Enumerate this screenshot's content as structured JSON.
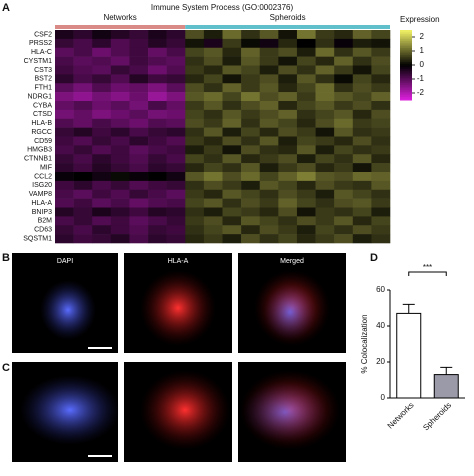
{
  "chart_data": [
    {
      "type": "heatmap",
      "title": "Immune System Process (GO:0002376)",
      "rows": [
        "CSF2",
        "PRSS2",
        "HLA-C",
        "CYSTM1",
        "CST3",
        "BST2",
        "FTH1",
        "NDRG1",
        "CYBA",
        "CTSD",
        "HLA-B",
        "RGCC",
        "CD59",
        "HMGB3",
        "CTNNB1",
        "MIF",
        "CCL2",
        "ISG20",
        "VAMP8",
        "HLA-A",
        "BNIP3",
        "B2M",
        "CD63",
        "SQSTM1"
      ],
      "groups": [
        {
          "name": "Networks",
          "color": "#d98a86"
        },
        {
          "name": "Spheroids",
          "color": "#5fbfca"
        }
      ],
      "column_groups": [
        "Networks",
        "Networks",
        "Networks",
        "Networks",
        "Networks",
        "Networks",
        "Networks",
        "Spheroids",
        "Spheroids",
        "Spheroids",
        "Spheroids",
        "Spheroids",
        "Spheroids",
        "Spheroids",
        "Spheroids",
        "Spheroids",
        "Spheroids",
        "Spheroids"
      ],
      "values": [
        [
          -0.3,
          -0.5,
          -0.2,
          -0.4,
          -0.6,
          -0.3,
          -0.5,
          0.8,
          0.3,
          1.1,
          0.5,
          0.9,
          0.2,
          1.2,
          0.6,
          0.4,
          1.0,
          0.7
        ],
        [
          -0.6,
          -0.8,
          -0.5,
          -0.9,
          -0.7,
          -0.4,
          -0.6,
          0.2,
          -0.3,
          0.6,
          0.1,
          -0.2,
          0.4,
          0.0,
          0.5,
          -0.1,
          0.3,
          0.2
        ],
        [
          -1.0,
          -0.8,
          -1.2,
          -0.9,
          -0.7,
          -1.1,
          -0.8,
          0.7,
          0.9,
          0.4,
          1.0,
          0.6,
          0.8,
          0.3,
          1.1,
          0.5,
          0.9,
          0.6
        ],
        [
          -0.8,
          -1.0,
          -0.9,
          -1.1,
          -0.7,
          -0.9,
          -1.0,
          0.5,
          0.8,
          0.3,
          0.9,
          0.6,
          0.2,
          0.7,
          0.4,
          1.0,
          0.5,
          0.8
        ],
        [
          -0.7,
          -0.9,
          -1.0,
          -0.6,
          -0.8,
          -1.2,
          -0.9,
          0.6,
          0.4,
          0.9,
          0.7,
          0.3,
          0.8,
          0.5,
          1.0,
          0.6,
          0.2,
          0.7
        ],
        [
          -0.5,
          -0.8,
          -0.6,
          -0.9,
          -0.4,
          -0.7,
          -0.6,
          0.4,
          0.7,
          0.2,
          0.6,
          0.8,
          0.3,
          0.9,
          0.5,
          0.1,
          0.7,
          0.4
        ],
        [
          -1.0,
          -1.3,
          -0.9,
          -1.2,
          -1.1,
          -1.4,
          -1.0,
          0.8,
          0.5,
          1.0,
          0.6,
          0.9,
          0.4,
          0.7,
          1.1,
          0.5,
          0.8,
          0.6
        ],
        [
          -1.4,
          -1.6,
          -1.3,
          -1.5,
          -1.2,
          -1.7,
          -1.4,
          0.9,
          1.1,
          0.7,
          1.2,
          0.8,
          1.0,
          0.6,
          1.1,
          0.9,
          0.7,
          1.0
        ],
        [
          -1.1,
          -0.9,
          -1.2,
          -1.0,
          -1.3,
          -0.8,
          -1.1,
          0.6,
          0.9,
          0.5,
          0.8,
          1.0,
          0.4,
          0.7,
          0.9,
          0.6,
          0.8,
          0.5
        ],
        [
          -1.3,
          -1.1,
          -1.4,
          -1.2,
          -1.0,
          -1.3,
          -1.2,
          0.7,
          0.5,
          0.9,
          0.6,
          0.8,
          1.0,
          0.5,
          0.7,
          0.9,
          0.4,
          0.8
        ],
        [
          -0.9,
          -1.1,
          -0.8,
          -1.0,
          -1.2,
          -0.9,
          -1.0,
          0.8,
          0.6,
          1.0,
          0.5,
          0.9,
          0.7,
          0.4,
          0.8,
          1.1,
          0.6,
          0.7
        ],
        [
          -0.6,
          -0.4,
          -0.7,
          -0.5,
          -0.8,
          -0.6,
          -0.5,
          0.5,
          0.9,
          0.3,
          0.7,
          0.4,
          0.8,
          0.6,
          0.2,
          0.9,
          0.5,
          0.6
        ],
        [
          -0.7,
          -0.9,
          -0.6,
          -0.8,
          -0.5,
          -0.7,
          -0.9,
          0.6,
          0.4,
          0.8,
          0.5,
          0.9,
          0.3,
          0.7,
          0.6,
          0.4,
          0.8,
          0.5
        ],
        [
          -0.8,
          -0.6,
          -0.9,
          -0.7,
          -1.0,
          -0.8,
          -0.7,
          0.3,
          0.6,
          0.2,
          0.8,
          0.5,
          0.4,
          0.9,
          0.3,
          0.7,
          0.5,
          0.6
        ],
        [
          -0.6,
          -0.8,
          -0.5,
          -0.7,
          -0.9,
          -0.6,
          -0.8,
          0.7,
          0.5,
          0.9,
          0.4,
          0.6,
          0.8,
          0.3,
          0.7,
          0.5,
          0.9,
          0.4
        ],
        [
          -0.5,
          -0.7,
          -0.4,
          -0.6,
          -0.8,
          -0.5,
          -0.6,
          0.4,
          0.7,
          0.5,
          0.9,
          0.3,
          0.6,
          0.8,
          0.4,
          0.6,
          0.2,
          0.7
        ],
        [
          -0.1,
          0.0,
          -0.2,
          0.1,
          -0.1,
          0.0,
          -0.2,
          0.9,
          1.2,
          0.8,
          1.1,
          0.7,
          1.0,
          1.3,
          0.9,
          0.8,
          1.1,
          1.0
        ],
        [
          -0.7,
          -0.5,
          -0.8,
          -0.6,
          -0.9,
          -0.7,
          -0.6,
          0.5,
          0.8,
          0.6,
          0.3,
          0.9,
          0.7,
          0.4,
          0.8,
          0.6,
          0.5,
          0.9
        ],
        [
          -0.8,
          -1.0,
          -0.7,
          -0.9,
          -0.6,
          -0.8,
          -1.0,
          0.6,
          0.4,
          0.9,
          0.7,
          0.5,
          0.8,
          0.6,
          0.3,
          0.9,
          0.7,
          0.5
        ],
        [
          -0.9,
          -0.7,
          -1.0,
          -0.8,
          -1.1,
          -0.9,
          -0.8,
          0.7,
          0.9,
          0.5,
          0.8,
          0.6,
          1.0,
          0.7,
          0.5,
          0.8,
          0.9,
          0.6
        ],
        [
          -0.4,
          -0.6,
          -0.3,
          -0.5,
          -0.7,
          -0.4,
          -0.5,
          0.5,
          0.3,
          0.7,
          0.6,
          0.4,
          0.8,
          0.2,
          0.6,
          0.5,
          0.7,
          0.3
        ],
        [
          -0.8,
          -0.6,
          -0.9,
          -0.7,
          -1.0,
          -0.8,
          -0.6,
          0.6,
          0.8,
          0.4,
          0.9,
          0.7,
          0.5,
          0.8,
          0.6,
          0.9,
          0.4,
          0.7
        ],
        [
          -0.6,
          -0.8,
          -0.5,
          -0.7,
          -0.9,
          -0.6,
          -0.7,
          0.5,
          0.7,
          0.9,
          0.4,
          0.8,
          0.6,
          0.3,
          0.7,
          0.5,
          0.8,
          0.6
        ],
        [
          -0.5,
          -0.7,
          -0.6,
          -0.4,
          -0.8,
          -0.5,
          -0.6,
          0.4,
          0.6,
          0.3,
          0.8,
          0.5,
          0.7,
          0.4,
          0.6,
          0.8,
          0.3,
          0.5
        ]
      ],
      "colorbar": {
        "title": "Expression",
        "lim": [
          -2.5,
          2.5
        ],
        "ticks": [
          2,
          1,
          0,
          -1,
          -2
        ],
        "colors": [
          "#e020e0",
          "#000000",
          "#f2f266"
        ]
      }
    },
    {
      "type": "bar",
      "ylabel": "% Colocalization",
      "categories": [
        "Networks",
        "Spheroids"
      ],
      "values": [
        47,
        13
      ],
      "errors": [
        5,
        4
      ],
      "colors": [
        "#ffffff",
        "#9a9aa8"
      ],
      "ylim": [
        0,
        60
      ],
      "yticks": [
        0,
        20,
        40,
        60
      ],
      "annotation": "***"
    }
  ],
  "panels": {
    "letters": [
      "A",
      "B",
      "C",
      "D"
    ],
    "image_labels": [
      "DAPI",
      "HLA-A",
      "Merged"
    ]
  }
}
